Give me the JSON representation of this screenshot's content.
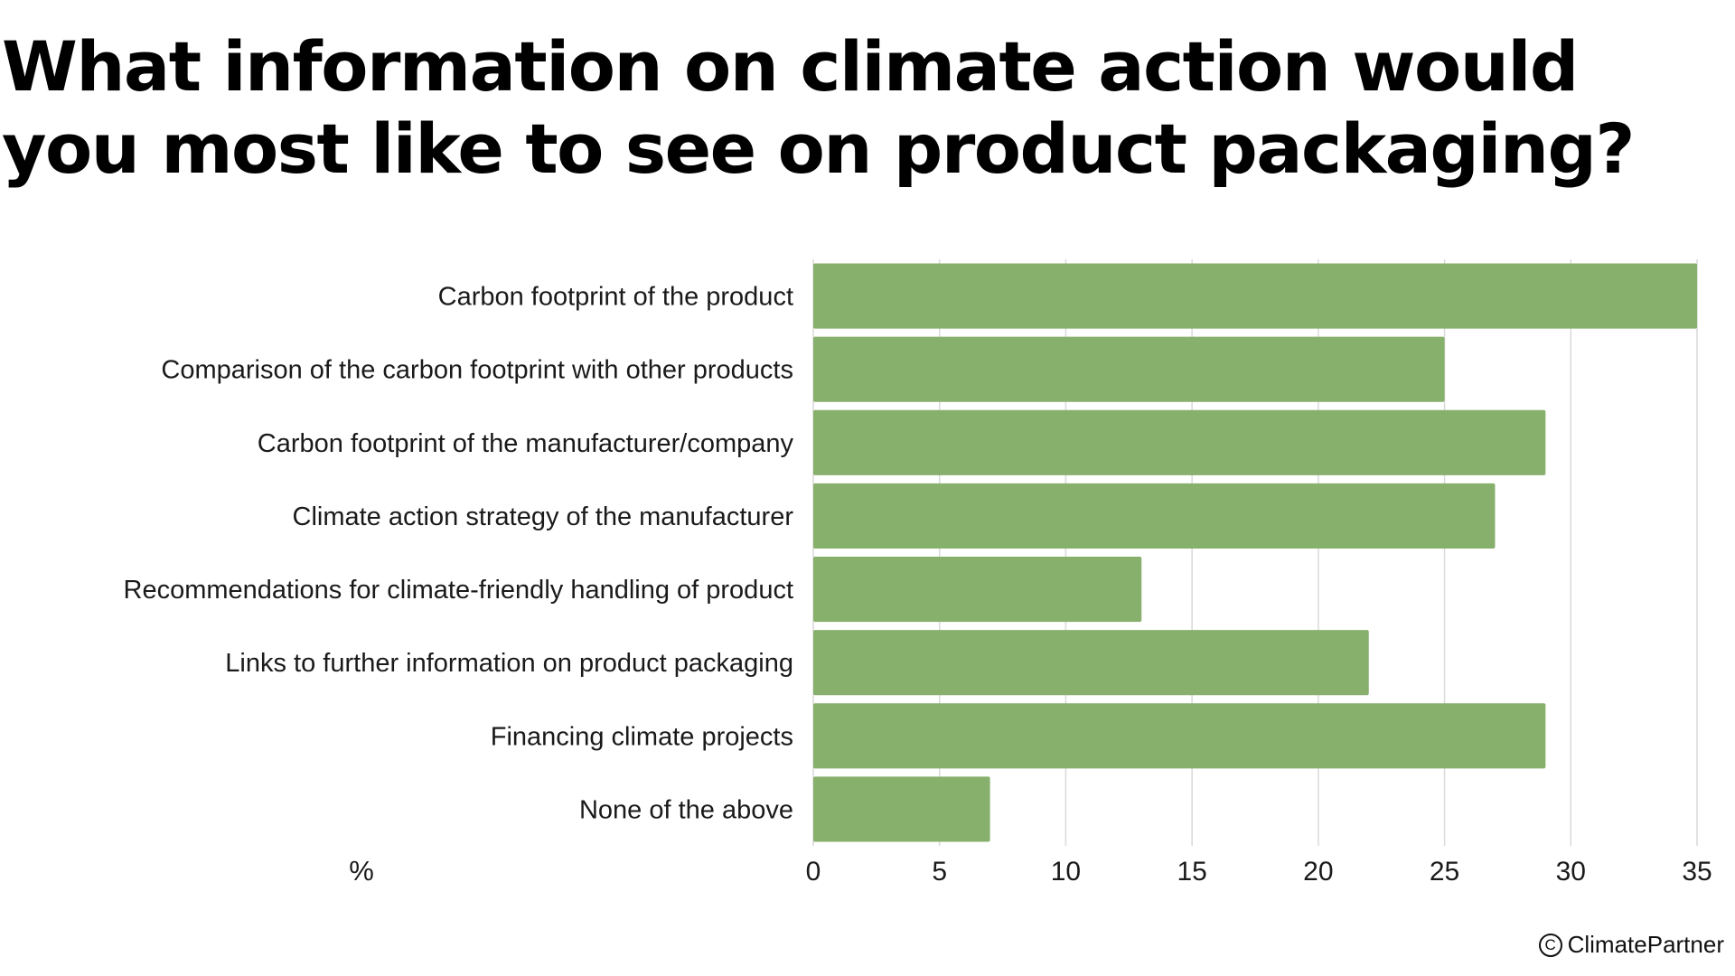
{
  "title": "What information on climate action would you most like to see on product packaging?",
  "credit": {
    "symbol": "C",
    "text": "ClimatePartner"
  },
  "colors": {
    "bar": "#87b06c",
    "grid": "#d9d9d9",
    "text": "#1a1a1a"
  },
  "chart_data": {
    "type": "bar",
    "orientation": "horizontal",
    "title": "What information on climate action would you most like to see on product packaging?",
    "xlabel": "%",
    "ylabel": "",
    "xlim": [
      0,
      35
    ],
    "xticks": [
      0,
      5,
      10,
      15,
      20,
      25,
      30,
      35
    ],
    "grid": "vertical",
    "categories": [
      "Carbon footprint of the product",
      "Comparison of the carbon footprint with other products",
      "Carbon footprint of the manufacturer/company",
      "Climate action strategy of the manufacturer",
      "Recommendations for climate-friendly handling of product",
      "Links to further information on product packaging",
      "Financing climate projects",
      "None of the above"
    ],
    "values": [
      35,
      25,
      29,
      27,
      13,
      22,
      29,
      7
    ]
  }
}
